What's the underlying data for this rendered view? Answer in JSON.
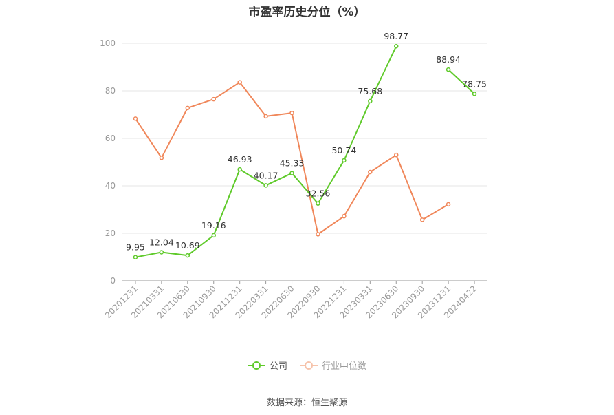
{
  "title": "市盈率历史分位（%）",
  "source": "数据来源：恒生聚源",
  "chart_data": {
    "type": "line",
    "title": "市盈率历史分位（%）",
    "categories": [
      "20201231",
      "20210331",
      "20210630",
      "20210930",
      "20211231",
      "20220331",
      "20220630",
      "20220930",
      "20221231",
      "20230331",
      "20230630",
      "20230930",
      "20231231",
      "20240422"
    ],
    "ylim": [
      0,
      100
    ],
    "yticks": [
      0,
      20,
      40,
      60,
      80,
      100
    ],
    "grid": true,
    "legend_position": "bottom",
    "series": [
      {
        "name": "公司",
        "color": "#5fca2a",
        "labels": true,
        "values": [
          9.95,
          12.04,
          10.69,
          19.16,
          46.93,
          40.17,
          45.33,
          32.56,
          50.74,
          75.68,
          98.77,
          null,
          88.94,
          78.75
        ]
      },
      {
        "name": "行业中位数",
        "color": "#f0875a",
        "labels": false,
        "values": [
          68.3,
          51.8,
          72.8,
          76.5,
          83.6,
          69.3,
          70.7,
          19.6,
          27.2,
          45.8,
          53.0,
          25.7,
          32.2,
          null
        ]
      }
    ]
  }
}
